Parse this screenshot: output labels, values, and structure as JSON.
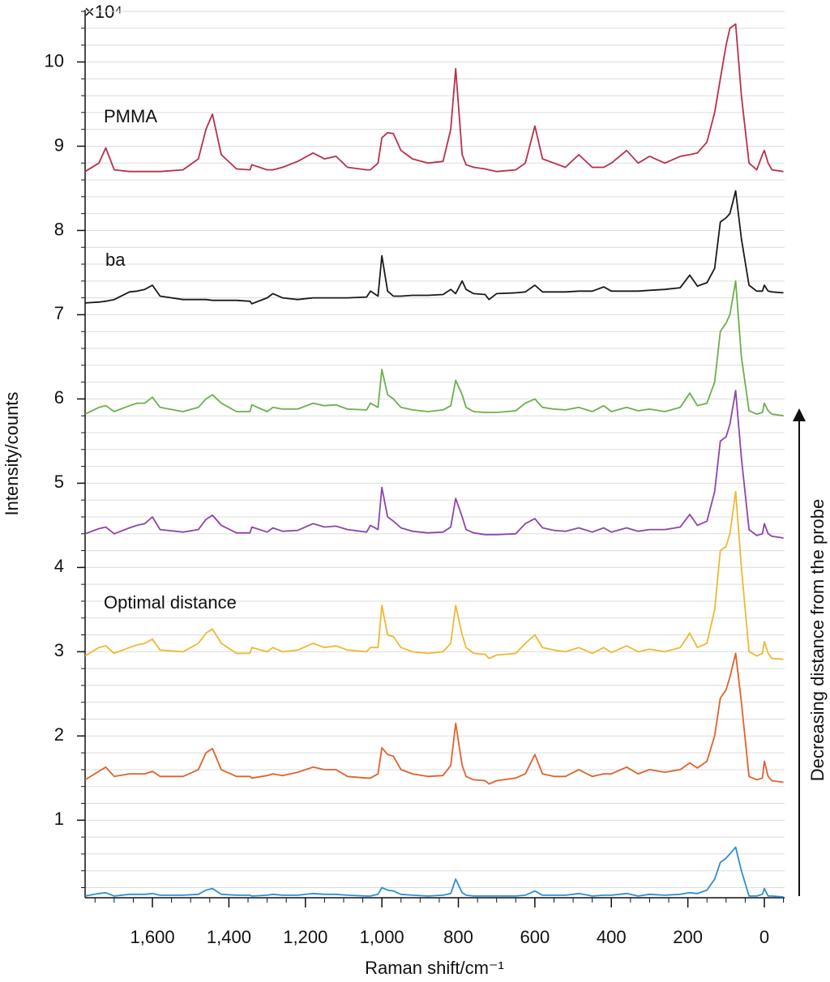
{
  "chart_data": {
    "type": "line",
    "multiplier_label": "×10⁴",
    "xlabel": "Raman shift/cm⁻¹",
    "ylabel": "Intensity/counts",
    "arrow_label": "Decreasing distance from the probe",
    "xlim": [
      1776,
      -53
    ],
    "ylim": [
      0.08,
      10.62
    ],
    "xticks": [
      {
        "value": 1600,
        "label": "1,600"
      },
      {
        "value": 1400,
        "label": "1,400"
      },
      {
        "value": 1200,
        "label": "1,200"
      },
      {
        "value": 1000,
        "label": "1,000"
      },
      800,
      600,
      400,
      200,
      0
    ],
    "xminorticks": [
      1750,
      1700,
      1650,
      1600,
      1550,
      1500,
      1450,
      1400,
      1350,
      1300,
      1250,
      1200,
      1150,
      1100,
      1050,
      1000,
      950,
      900,
      850,
      800,
      750,
      700,
      650,
      600,
      550,
      500,
      450,
      400,
      350,
      300,
      250,
      200,
      150,
      100,
      50,
      0,
      -50
    ],
    "yticks": [
      1,
      2,
      3,
      4,
      5,
      6,
      7,
      8,
      9,
      10
    ],
    "yminorticks": [
      0.2,
      0.4,
      0.6,
      0.8,
      1,
      1.2,
      1.4,
      1.6,
      1.8,
      2,
      2.2,
      2.4,
      2.6,
      2.8,
      3,
      3.2,
      3.4,
      3.6,
      3.8,
      4,
      4.2,
      4.4,
      4.6,
      4.8,
      5,
      5.2,
      5.4,
      5.6,
      5.8,
      6,
      6.2,
      6.4,
      6.6,
      6.8,
      7,
      7.2,
      7.4,
      7.6,
      7.8,
      8,
      8.2,
      8.4,
      8.6,
      8.8,
      9,
      9.2,
      9.4,
      9.6,
      9.8,
      10,
      10.2,
      10.4,
      10.6
    ],
    "grid": true,
    "x": [
      1776,
      1740,
      1722,
      1700,
      1660,
      1640,
      1620,
      1600,
      1580,
      1520,
      1480,
      1460,
      1443,
      1420,
      1380,
      1345,
      1340,
      1300,
      1285,
      1260,
      1220,
      1180,
      1150,
      1120,
      1090,
      1040,
      1030,
      1010,
      1000,
      985,
      970,
      950,
      920,
      880,
      840,
      820,
      807,
      790,
      780,
      760,
      730,
      720,
      700,
      650,
      625,
      600,
      580,
      550,
      520,
      485,
      450,
      420,
      400,
      360,
      330,
      300,
      260,
      220,
      195,
      175,
      150,
      130,
      115,
      100,
      90,
      75,
      60,
      40,
      20,
      5,
      0,
      -10,
      -20,
      -50
    ],
    "series": [
      {
        "name": "PMMA",
        "color": "#b8304a",
        "values": [
          8.7,
          8.8,
          8.98,
          8.72,
          8.7,
          8.7,
          8.7,
          8.7,
          8.7,
          8.72,
          8.85,
          9.2,
          9.38,
          8.9,
          8.73,
          8.72,
          8.78,
          8.72,
          8.72,
          8.75,
          8.82,
          8.92,
          8.85,
          8.88,
          8.75,
          8.72,
          8.72,
          8.8,
          9.1,
          9.16,
          9.15,
          8.95,
          8.85,
          8.8,
          8.82,
          9.2,
          9.92,
          8.9,
          8.78,
          8.75,
          8.73,
          8.72,
          8.7,
          8.72,
          8.8,
          9.24,
          8.85,
          8.8,
          8.75,
          8.9,
          8.75,
          8.75,
          8.8,
          8.95,
          8.8,
          8.88,
          8.8,
          8.88,
          8.9,
          8.92,
          9.05,
          9.4,
          9.8,
          10.2,
          10.4,
          10.45,
          9.6,
          8.8,
          8.72,
          8.9,
          8.95,
          8.8,
          8.72,
          8.7
        ]
      },
      {
        "name": "ba",
        "color": "#1a1a1a",
        "values": [
          7.14,
          7.15,
          7.16,
          7.18,
          7.27,
          7.28,
          7.3,
          7.35,
          7.22,
          7.18,
          7.18,
          7.18,
          7.17,
          7.17,
          7.17,
          7.16,
          7.13,
          7.2,
          7.25,
          7.2,
          7.18,
          7.2,
          7.2,
          7.2,
          7.2,
          7.21,
          7.28,
          7.22,
          7.7,
          7.28,
          7.22,
          7.22,
          7.23,
          7.23,
          7.24,
          7.3,
          7.25,
          7.4,
          7.3,
          7.25,
          7.24,
          7.18,
          7.25,
          7.26,
          7.27,
          7.35,
          7.27,
          7.27,
          7.27,
          7.28,
          7.28,
          7.33,
          7.28,
          7.28,
          7.28,
          7.29,
          7.3,
          7.32,
          7.47,
          7.34,
          7.38,
          7.55,
          8.1,
          8.15,
          8.2,
          8.47,
          7.9,
          7.35,
          7.28,
          7.28,
          7.35,
          7.28,
          7.27,
          7.26
        ]
      },
      {
        "color": "#6ab04c",
        "values": [
          5.82,
          5.9,
          5.92,
          5.85,
          5.92,
          5.95,
          5.95,
          6.02,
          5.9,
          5.85,
          5.9,
          6.0,
          6.05,
          5.95,
          5.85,
          5.85,
          5.93,
          5.85,
          5.9,
          5.88,
          5.88,
          5.95,
          5.92,
          5.93,
          5.88,
          5.87,
          5.95,
          5.9,
          6.35,
          6.05,
          6.0,
          5.9,
          5.87,
          5.85,
          5.87,
          5.92,
          6.22,
          6.05,
          5.9,
          5.85,
          5.84,
          5.84,
          5.84,
          5.86,
          5.95,
          6.0,
          5.9,
          5.88,
          5.87,
          5.9,
          5.85,
          5.92,
          5.85,
          5.9,
          5.86,
          5.88,
          5.85,
          5.9,
          6.07,
          5.92,
          5.95,
          6.2,
          6.8,
          6.9,
          7.0,
          7.4,
          6.5,
          5.86,
          5.82,
          5.84,
          5.95,
          5.86,
          5.82,
          5.8
        ]
      },
      {
        "color": "#8e44ad",
        "values": [
          4.4,
          4.46,
          4.48,
          4.4,
          4.47,
          4.5,
          4.52,
          4.6,
          4.45,
          4.42,
          4.45,
          4.57,
          4.62,
          4.5,
          4.41,
          4.41,
          4.48,
          4.42,
          4.47,
          4.43,
          4.44,
          4.52,
          4.48,
          4.49,
          4.45,
          4.42,
          4.5,
          4.45,
          4.95,
          4.6,
          4.55,
          4.47,
          4.43,
          4.41,
          4.42,
          4.48,
          4.82,
          4.6,
          4.45,
          4.41,
          4.39,
          4.39,
          4.39,
          4.4,
          4.52,
          4.58,
          4.47,
          4.44,
          4.43,
          4.47,
          4.42,
          4.47,
          4.42,
          4.47,
          4.43,
          4.45,
          4.45,
          4.48,
          4.63,
          4.5,
          4.55,
          4.9,
          5.5,
          5.55,
          5.7,
          6.1,
          5.3,
          4.45,
          4.38,
          4.4,
          4.52,
          4.4,
          4.37,
          4.35
        ]
      },
      {
        "name": "Optimal distance",
        "color": "#f0b830",
        "values": [
          2.95,
          3.05,
          3.07,
          2.98,
          3.05,
          3.08,
          3.1,
          3.15,
          3.02,
          3.0,
          3.1,
          3.22,
          3.27,
          3.1,
          2.98,
          2.98,
          3.05,
          3.0,
          3.05,
          3.0,
          3.02,
          3.1,
          3.05,
          3.07,
          3.02,
          3.0,
          3.05,
          3.05,
          3.55,
          3.2,
          3.18,
          3.05,
          3.0,
          2.98,
          3.0,
          3.1,
          3.55,
          3.2,
          3.05,
          2.98,
          2.97,
          2.92,
          2.96,
          2.98,
          3.1,
          3.2,
          3.05,
          3.02,
          3.0,
          3.05,
          2.98,
          3.05,
          2.99,
          3.07,
          3.0,
          3.03,
          3.0,
          3.05,
          3.22,
          3.05,
          3.1,
          3.5,
          4.2,
          4.25,
          4.4,
          4.9,
          4.0,
          3.0,
          2.95,
          2.98,
          3.12,
          2.98,
          2.92,
          2.91
        ]
      },
      {
        "color": "#e0622a",
        "values": [
          1.48,
          1.58,
          1.63,
          1.52,
          1.55,
          1.55,
          1.55,
          1.58,
          1.52,
          1.52,
          1.6,
          1.8,
          1.85,
          1.6,
          1.52,
          1.52,
          1.5,
          1.53,
          1.55,
          1.53,
          1.57,
          1.63,
          1.6,
          1.6,
          1.52,
          1.5,
          1.5,
          1.55,
          1.86,
          1.78,
          1.76,
          1.6,
          1.55,
          1.52,
          1.53,
          1.65,
          2.15,
          1.65,
          1.52,
          1.48,
          1.47,
          1.43,
          1.47,
          1.5,
          1.55,
          1.78,
          1.55,
          1.52,
          1.52,
          1.6,
          1.52,
          1.55,
          1.55,
          1.63,
          1.55,
          1.6,
          1.57,
          1.6,
          1.68,
          1.62,
          1.7,
          2.0,
          2.45,
          2.55,
          2.7,
          2.98,
          2.4,
          1.52,
          1.48,
          1.5,
          1.7,
          1.52,
          1.47,
          1.45
        ]
      },
      {
        "color": "#2f8fd0",
        "values": [
          0.1,
          0.13,
          0.14,
          0.1,
          0.12,
          0.12,
          0.12,
          0.13,
          0.11,
          0.11,
          0.12,
          0.17,
          0.19,
          0.12,
          0.11,
          0.11,
          0.1,
          0.11,
          0.12,
          0.11,
          0.11,
          0.13,
          0.12,
          0.12,
          0.11,
          0.1,
          0.1,
          0.12,
          0.2,
          0.17,
          0.16,
          0.12,
          0.11,
          0.1,
          0.11,
          0.13,
          0.3,
          0.14,
          0.11,
          0.1,
          0.1,
          0.1,
          0.1,
          0.1,
          0.11,
          0.16,
          0.11,
          0.11,
          0.11,
          0.13,
          0.1,
          0.11,
          0.11,
          0.13,
          0.1,
          0.12,
          0.11,
          0.12,
          0.14,
          0.13,
          0.17,
          0.3,
          0.5,
          0.55,
          0.6,
          0.68,
          0.4,
          0.1,
          0.1,
          0.12,
          0.19,
          0.1,
          0.1,
          0.09
        ]
      }
    ]
  }
}
